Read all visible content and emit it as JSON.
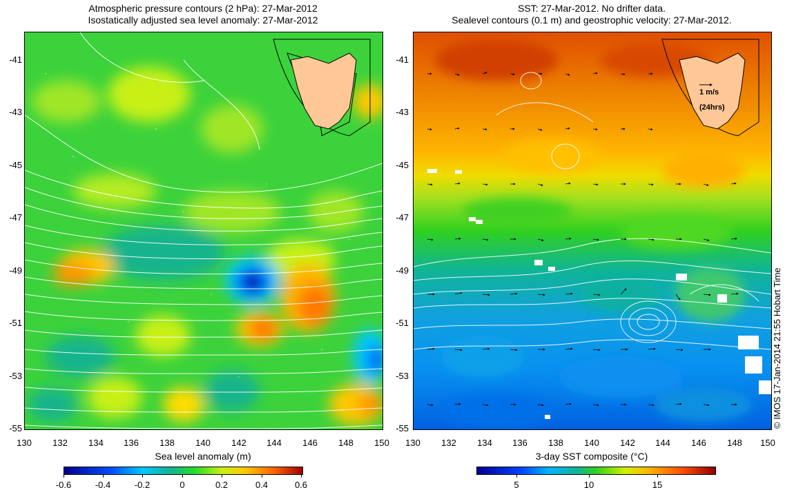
{
  "left_panel": {
    "title_line1": "Atmospheric pressure contours (2 hPa): 27-Mar-2012",
    "title_line2": "Isostatically adjusted sea level anomaly: 27-Mar-2012",
    "x_ticks": [
      "130",
      "132",
      "134",
      "136",
      "138",
      "140",
      "142",
      "144",
      "146",
      "148",
      "150"
    ],
    "y_ticks": [
      "-41",
      "-43",
      "-45",
      "-47",
      "-49",
      "-51",
      "-53",
      "-55"
    ],
    "xlabel": "Sea level anomaly (m)",
    "colorbar_ticks": [
      "-0.6",
      "-0.4",
      "-0.2",
      "0",
      "0.2",
      "0.4",
      "0.6"
    ],
    "colors": {
      "low": "#00008f",
      "mid": "#28dc28",
      "high": "#a00000",
      "land": "#ffc896"
    }
  },
  "right_panel": {
    "title_line1": "SST: 27-Mar-2012. No drifter data.",
    "title_line2": "Sealevel contours (0.1 m) and geostrophic velocity: 27-Mar-2012.",
    "x_ticks": [
      "130",
      "132",
      "134",
      "136",
      "138",
      "140",
      "142",
      "144",
      "146",
      "148",
      "150"
    ],
    "y_ticks": [
      "-41",
      "-43",
      "-45",
      "-47",
      "-49",
      "-51",
      "-53",
      "-55"
    ],
    "xlabel": "3-day SST composite (°C)",
    "colorbar_ticks": [
      "5",
      "10",
      "15"
    ],
    "vector_scale_label": "1 m/s",
    "vector_scale_sublabel": "(24hrs)",
    "colors": {
      "warm": "#e05000",
      "mid": "#30d020",
      "cool": "#10a0e0",
      "land": "#ffc896"
    }
  },
  "credit": "© IMOS 17-Jan-2014 21:55 Hobart Time",
  "map_data": {
    "lon_range": [
      130,
      150
    ],
    "lat_range": [
      -55,
      -40.2
    ],
    "features": [
      "Tasmania",
      "sea level anomaly",
      "pressure contours",
      "SST",
      "geostrophic velocity vectors"
    ]
  }
}
